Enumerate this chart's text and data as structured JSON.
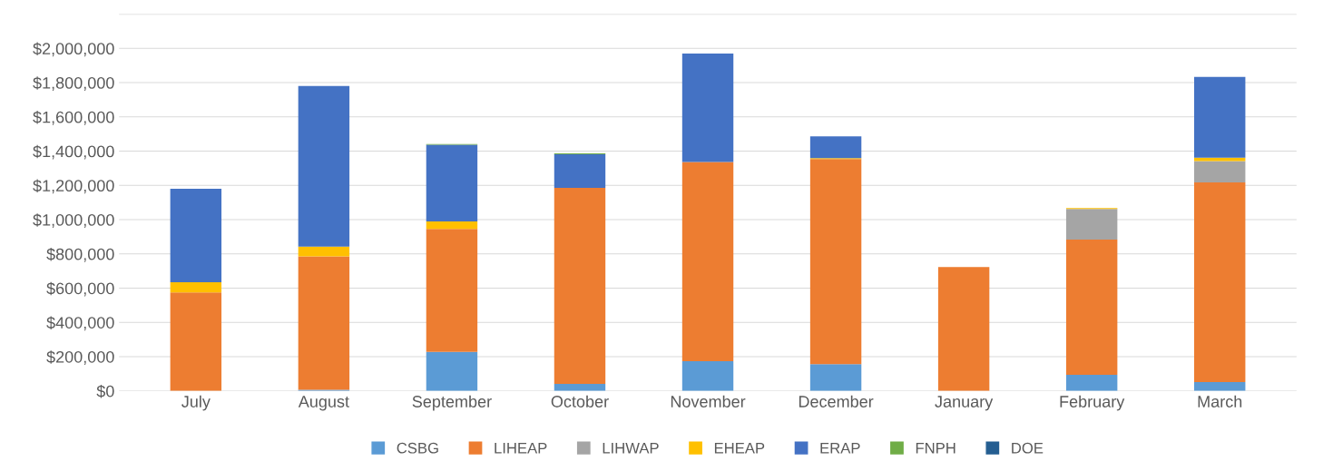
{
  "chart_data": {
    "type": "bar",
    "stacked": true,
    "categories": [
      "July",
      "August",
      "September",
      "October",
      "November",
      "December",
      "January",
      "February",
      "March"
    ],
    "series": [
      {
        "name": "CSBG",
        "color": "#5b9bd5",
        "values": [
          0,
          7000,
          228000,
          41000,
          174000,
          157000,
          0,
          94000,
          52000
        ]
      },
      {
        "name": "LIHEAP",
        "color": "#ed7d31",
        "values": [
          575000,
          779000,
          718000,
          1145000,
          1163000,
          1197000,
          723000,
          790000,
          1165000
        ]
      },
      {
        "name": "LIHWAP",
        "color": "#a5a5a5",
        "values": [
          0,
          0,
          0,
          0,
          0,
          0,
          0,
          179000,
          125000
        ]
      },
      {
        "name": "EHEAP",
        "color": "#ffc000",
        "values": [
          60000,
          57000,
          43000,
          0,
          0,
          5000,
          0,
          5000,
          20000
        ]
      },
      {
        "name": "ERAP",
        "color": "#4472c4",
        "values": [
          546000,
          937000,
          448000,
          196000,
          633000,
          127000,
          0,
          0,
          472000
        ]
      },
      {
        "name": "FNPH",
        "color": "#70ad47",
        "values": [
          0,
          0,
          5000,
          5000,
          0,
          0,
          0,
          0,
          0
        ]
      },
      {
        "name": "DOE",
        "color": "#255e91",
        "values": [
          null,
          null,
          null,
          null,
          null,
          null,
          null,
          null,
          null
        ]
      }
    ],
    "ylim": [
      0,
      2200000
    ],
    "yticks": [
      {
        "value": 0,
        "label": "$0"
      },
      {
        "value": 200000,
        "label": "$200,000"
      },
      {
        "value": 400000,
        "label": "$400,000"
      },
      {
        "value": 600000,
        "label": "$600,000"
      },
      {
        "value": 800000,
        "label": "$800,000"
      },
      {
        "value": 1000000,
        "label": "$1,000,000"
      },
      {
        "value": 1200000,
        "label": "$1,200,000"
      },
      {
        "value": 1400000,
        "label": "$1,400,000"
      },
      {
        "value": 1600000,
        "label": "$1,600,000"
      },
      {
        "value": 1800000,
        "label": "$1,800,000"
      },
      {
        "value": 2000000,
        "label": "$2,000,000"
      },
      {
        "value": 2200000,
        "label": null
      }
    ],
    "grid": "y",
    "legend": "bottom"
  }
}
